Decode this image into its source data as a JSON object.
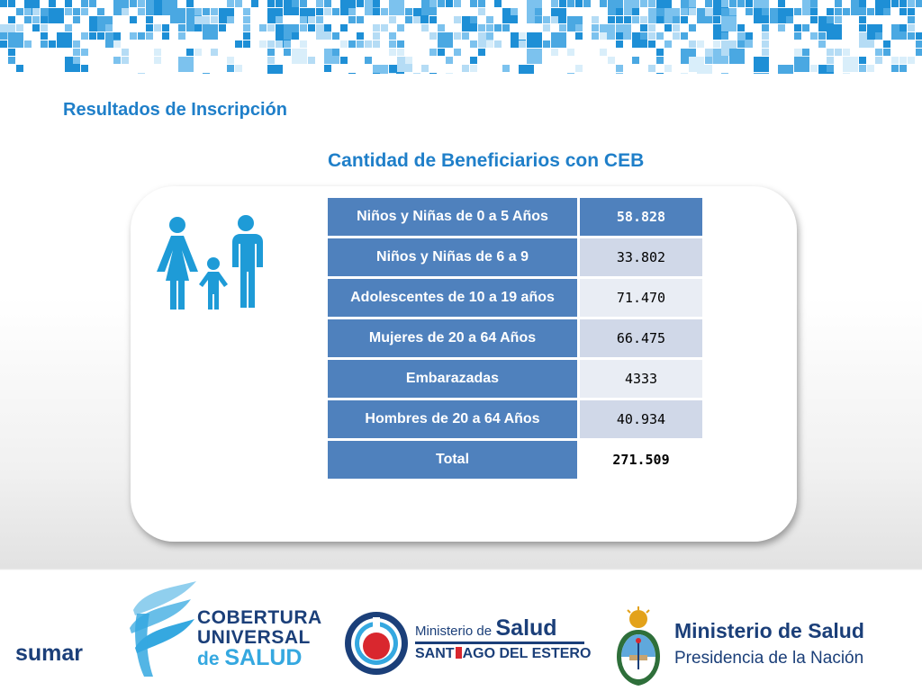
{
  "header": {
    "title": "Resultados de Inscripción",
    "banner_colors": [
      "#1e8fd6",
      "#4aa8e2",
      "#7cc2ee",
      "#b5dcf5",
      "#d9eefa"
    ]
  },
  "table": {
    "title": "Cantidad de Beneficiarios con CEB",
    "rows": [
      {
        "label": "Niños y Niñas de 0 a 5 Años",
        "value": "58.828"
      },
      {
        "label": "Niños y Niñas de 6 a 9",
        "value": "33.802"
      },
      {
        "label": "Adolescentes de 10 a 19 años",
        "value": "71.470"
      },
      {
        "label": "Mujeres de 20 a 64 Años",
        "value": "66.475"
      },
      {
        "label": "Embarazadas",
        "value": "4333"
      },
      {
        "label": "Hombres de 20 a 64 Años",
        "value": "40.934"
      },
      {
        "label": "Total",
        "value": "271.509"
      }
    ]
  },
  "illustration": {
    "icon": "family-icon",
    "color": "#1e9bd7"
  },
  "footer": {
    "sumar": "sumar",
    "cobertura": {
      "line1": "COBERTURA",
      "line2": "UNIVERSAL",
      "line3_small": "de",
      "line3_big": "SALUD"
    },
    "santiago": {
      "small": "Ministerio de",
      "big": "Salud",
      "sub_left": "SANT",
      "sub_right": "AGO DEL ESTERO"
    },
    "nacion": {
      "title": "Ministerio de Salud",
      "sub": "Presidencia de la Nación"
    },
    "colors": {
      "navy": "#1b3f79",
      "light_blue": "#35a8e0",
      "red": "#d9272e"
    }
  }
}
